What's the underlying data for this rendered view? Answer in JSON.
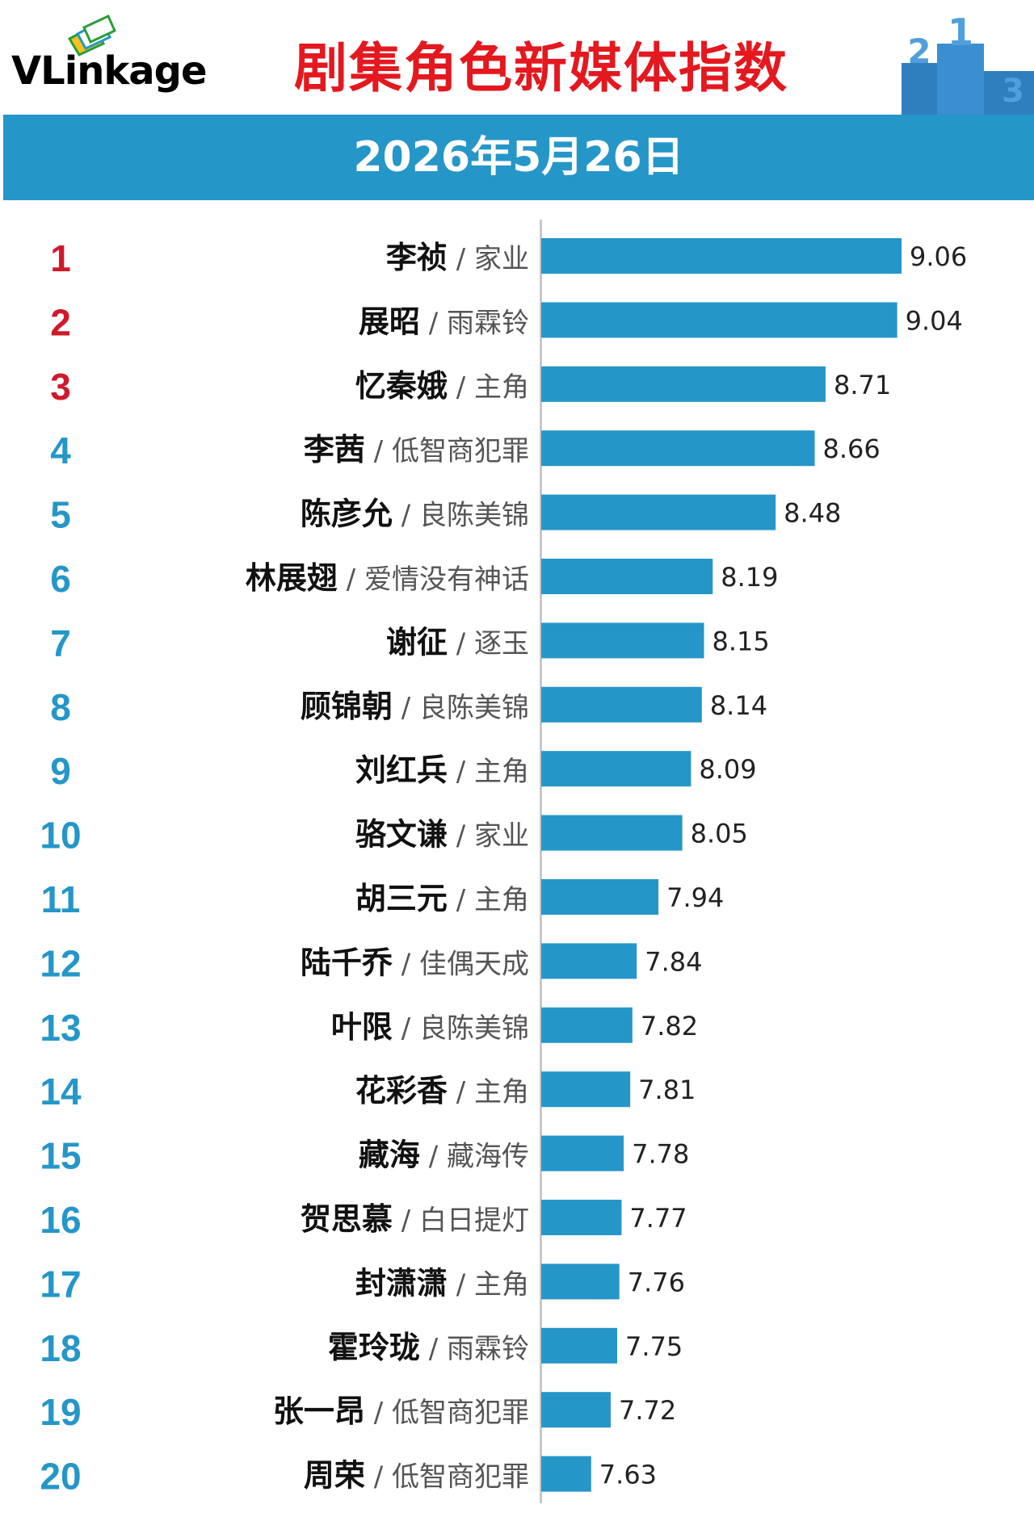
{
  "header": {
    "logo_text": "VLinkage",
    "title": "剧集角色新媒体指数",
    "podium_numbers": [
      "2",
      "1",
      "3"
    ]
  },
  "banner": {
    "date": "2026年5月26日"
  },
  "colors": {
    "bar": "#2596c8",
    "top_rank": "#d0192b",
    "rank": "#2596c8",
    "title": "#e4181f",
    "banner": "#2596c8"
  },
  "chart_data": {
    "type": "bar",
    "orientation": "horizontal",
    "title": "剧集角色新媒体指数",
    "subtitle": "2026年5月26日",
    "xlim": [
      7.4,
      9.15
    ],
    "ranks": [
      "1",
      "2",
      "3",
      "4",
      "5",
      "6",
      "7",
      "8",
      "9",
      "10",
      "11",
      "12",
      "13",
      "14",
      "15",
      "16",
      "17",
      "18",
      "19",
      "20"
    ],
    "characters": [
      "李祯",
      "展昭",
      "忆秦娥",
      "李茜",
      "陈彦允",
      "林展翅",
      "谢征",
      "顾锦朝",
      "刘红兵",
      "骆文谦",
      "胡三元",
      "陆千乔",
      "叶限",
      "花彩香",
      "藏海",
      "贺思慕",
      "封潇潇",
      "霍玲珑",
      "张一昂",
      "周荣"
    ],
    "dramas": [
      "家业",
      "雨霖铃",
      "主角",
      "低智商犯罪",
      "良陈美锦",
      "爱情没有神话",
      "逐玉",
      "良陈美锦",
      "主角",
      "家业",
      "主角",
      "佳偶天成",
      "良陈美锦",
      "主角",
      "藏海传",
      "白日提灯",
      "主角",
      "雨霖铃",
      "低智商犯罪",
      "低智商犯罪"
    ],
    "values": [
      9.06,
      9.04,
      8.71,
      8.66,
      8.48,
      8.19,
      8.15,
      8.14,
      8.09,
      8.05,
      7.94,
      7.84,
      7.82,
      7.81,
      7.78,
      7.77,
      7.76,
      7.75,
      7.72,
      7.63
    ],
    "value_labels": [
      "9.06",
      "9.04",
      "8.71",
      "8.66",
      "8.48",
      "8.19",
      "8.15",
      "8.14",
      "8.09",
      "8.05",
      "7.94",
      "7.84",
      "7.82",
      "7.81",
      "7.78",
      "7.77",
      "7.76",
      "7.75",
      "7.72",
      "7.63"
    ],
    "separator": "/"
  }
}
